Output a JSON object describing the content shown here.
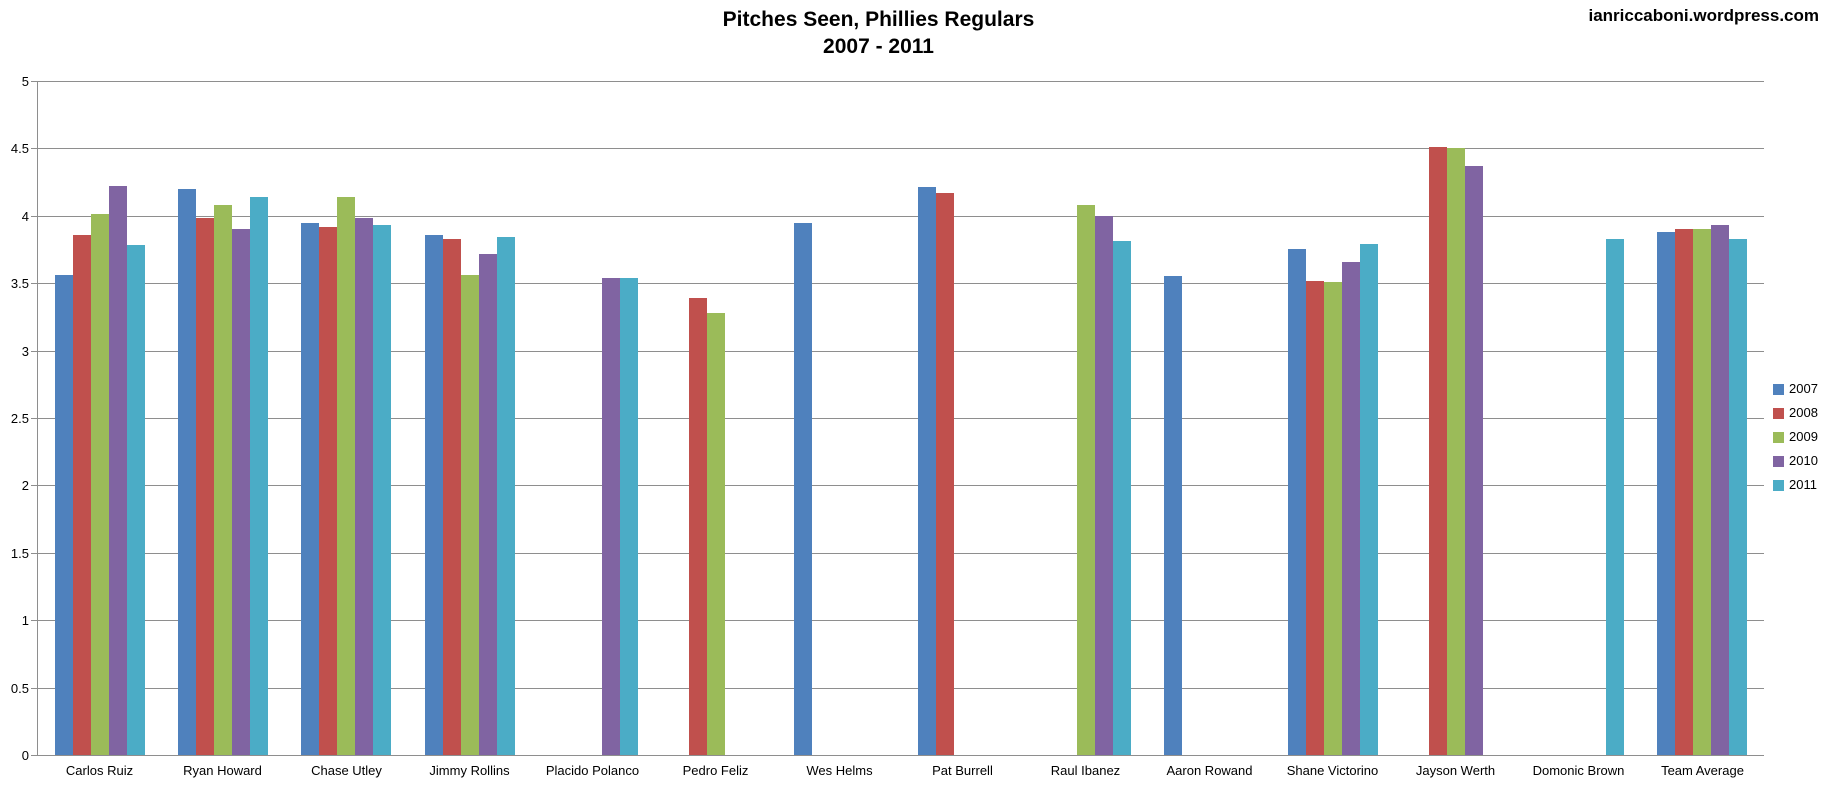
{
  "page": {
    "watermark": "ianriccaboni.wordpress.com"
  },
  "chart_data": {
    "type": "bar",
    "title": "Pitches Seen, Phillies Regulars",
    "subtitle": "2007 - 2011",
    "xlabel": "",
    "ylabel": "",
    "ylim": [
      0,
      5
    ],
    "ytick_step": 0.5,
    "ytick_labels": [
      "5",
      "4.5",
      "4",
      "3.5",
      "3",
      "2.5",
      "2",
      "1.5",
      "1",
      "0.5",
      "0"
    ],
    "grid": true,
    "legend_position": "right",
    "categories": [
      "Carlos Ruiz",
      "Ryan Howard",
      "Chase Utley",
      "Jimmy Rollins",
      "Placido Polanco",
      "Pedro Feliz",
      "Wes Helms",
      "Pat Burrell",
      "Raul Ibanez",
      "Aaron Rowand",
      "Shane Victorino",
      "Jayson Werth",
      "Domonic Brown",
      "Team Average"
    ],
    "series": [
      {
        "name": "2007",
        "color": "#4F81BD",
        "values": [
          3.56,
          4.2,
          3.95,
          3.86,
          null,
          null,
          3.95,
          4.21,
          null,
          3.55,
          3.75,
          null,
          null,
          3.88
        ]
      },
      {
        "name": "2008",
        "color": "#C0504D",
        "values": [
          3.86,
          3.98,
          3.92,
          3.83,
          null,
          3.39,
          null,
          4.17,
          null,
          null,
          3.52,
          4.51,
          null,
          3.9
        ]
      },
      {
        "name": "2009",
        "color": "#9BBB59",
        "values": [
          4.01,
          4.08,
          4.14,
          3.56,
          null,
          3.28,
          null,
          null,
          4.08,
          null,
          3.51,
          4.5,
          null,
          3.9
        ]
      },
      {
        "name": "2010",
        "color": "#8064A2",
        "values": [
          4.22,
          3.9,
          3.98,
          3.72,
          3.54,
          null,
          null,
          null,
          4.0,
          null,
          3.66,
          4.37,
          null,
          3.93
        ]
      },
      {
        "name": "2011",
        "color": "#4BACC6",
        "values": [
          3.78,
          4.14,
          3.93,
          3.84,
          3.54,
          null,
          null,
          null,
          3.81,
          null,
          3.79,
          null,
          3.83,
          3.83
        ]
      }
    ]
  }
}
